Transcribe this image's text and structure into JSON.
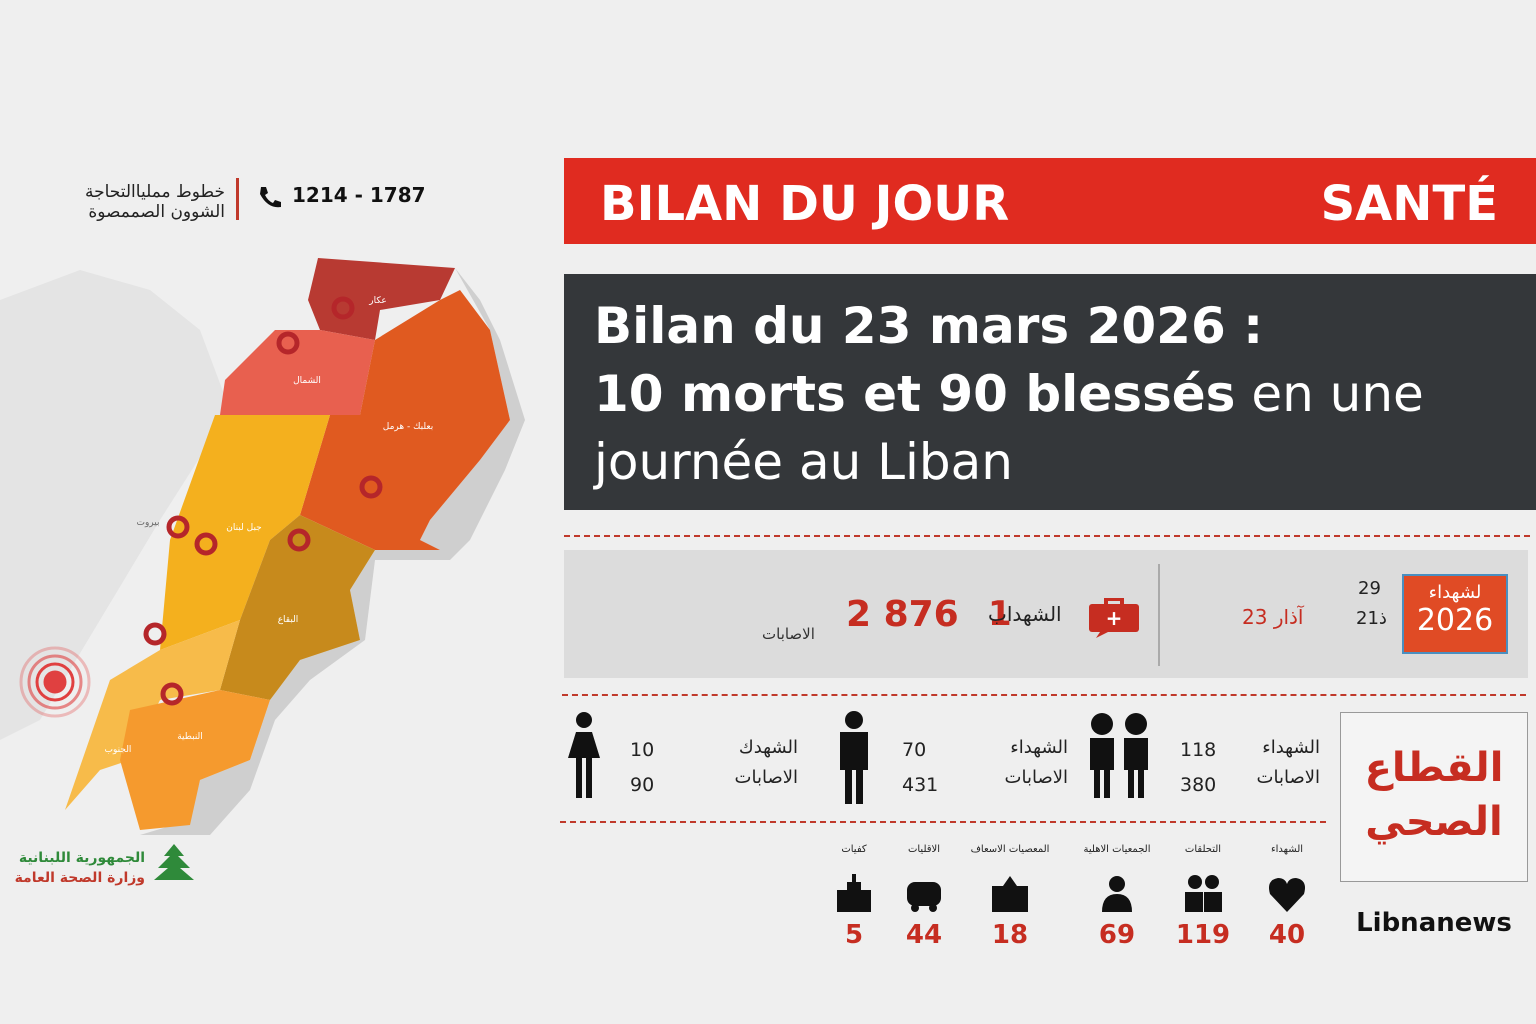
{
  "header": {
    "contact_line1": "خطوط مملياالتحاجة",
    "contact_line2": "الشوون الصممصوة",
    "phone": "1214 - 1787"
  },
  "banner": {
    "left": "BILAN DU  JOUR",
    "right": "SANTÉ"
  },
  "headline": {
    "line1": "Bilan du 23 mars 2026 :",
    "line2_bold": "10 morts et 90 blessés",
    "line2_rest": "en une",
    "line3": "journée au Liban"
  },
  "summary": {
    "injured_label": "الاصابات",
    "injured_value": "2 876",
    "martyrs_value": "1",
    "martyrs_label": "الشهداب",
    "date": "23 آذار",
    "date_small_top": "29",
    "date_small_bottom": "2ذ1",
    "badge_top": "لشهداء",
    "badge_year": "2026"
  },
  "demographics": [
    {
      "martyrs": 10,
      "injured": 90,
      "martyrs_label": "الشهدك",
      "injured_label": "الاصابات"
    },
    {
      "martyrs": 70,
      "injured": 431,
      "martyrs_label": "الشهداء",
      "injured_label": "الاصابات"
    },
    {
      "martyrs": 118,
      "injured": 380,
      "martyrs_label": "الشهداء",
      "injured_label": "الاصابات"
    }
  ],
  "sector": {
    "line1": "القطاع",
    "line2": "الصحي"
  },
  "brand": "Libnanews",
  "facilities": [
    {
      "label": "كفيات",
      "value": 5
    },
    {
      "label": "الاقليات",
      "value": 44
    },
    {
      "label": "المعصيات الاسعاف",
      "value": 18
    },
    {
      "label": "الجمعيات الاهلية",
      "value": 69
    },
    {
      "label": "التحلقات",
      "value": 119
    },
    {
      "label": "الشهداء",
      "value": 40
    }
  ],
  "map": {
    "regions": [
      "عكار",
      "الشمال",
      "بعلبك - هرمل",
      "جبل لبنان",
      "البقاع",
      "الجنوب",
      "النبطية",
      "بيروت"
    ]
  },
  "logo": {
    "line1": "الجمهورية اللبنانية",
    "line2": "وزارة الصحة العامة"
  }
}
